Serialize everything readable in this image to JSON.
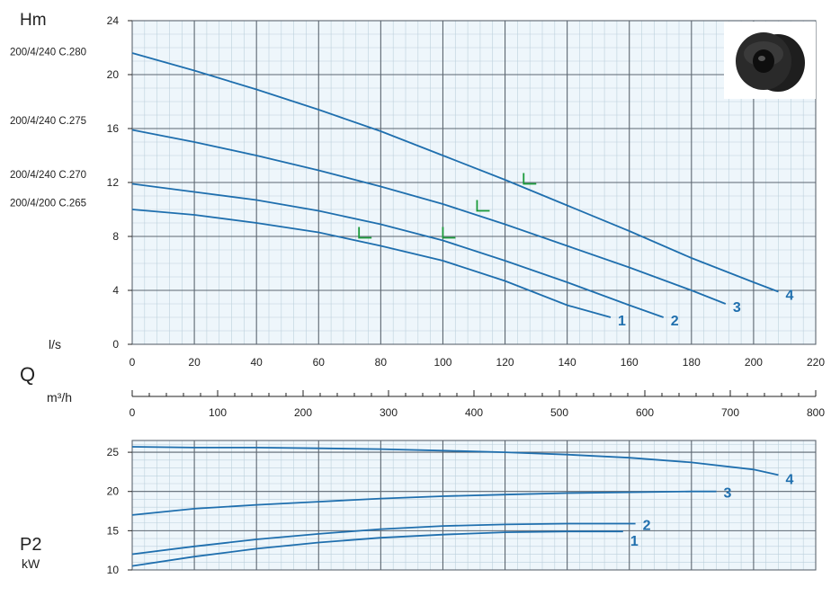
{
  "chart_data": [
    {
      "type": "line",
      "ylabel": "Hm",
      "xlabel": "l/s",
      "x_axis_title": "Q",
      "xlim": [
        0,
        220
      ],
      "ylim": [
        0,
        24
      ],
      "x_ticks": [
        0,
        20,
        40,
        60,
        80,
        100,
        120,
        140,
        160,
        180,
        200,
        220
      ],
      "y_ticks": [
        0,
        4,
        8,
        12,
        16,
        20,
        24
      ],
      "grid": true,
      "model_labels": [
        {
          "text": "200/4/240 C.280",
          "y": 21.7
        },
        {
          "text": "200/4/240 C.275",
          "y": 16.6
        },
        {
          "text": "200/4/240 C.270",
          "y": 12.6
        },
        {
          "text": "200/4/200 C.265",
          "y": 10.5
        }
      ],
      "series": [
        {
          "name": "1",
          "x": [
            0,
            20,
            40,
            60,
            80,
            100,
            120,
            140,
            154
          ],
          "y": [
            10.0,
            9.6,
            9.0,
            8.3,
            7.3,
            6.2,
            4.7,
            2.9,
            2.0
          ]
        },
        {
          "name": "2",
          "x": [
            0,
            20,
            40,
            60,
            80,
            100,
            120,
            140,
            160,
            171
          ],
          "y": [
            11.9,
            11.3,
            10.7,
            9.9,
            8.9,
            7.7,
            6.2,
            4.6,
            2.9,
            2.0
          ]
        },
        {
          "name": "3",
          "x": [
            0,
            20,
            40,
            60,
            80,
            100,
            120,
            140,
            160,
            180,
            191
          ],
          "y": [
            15.9,
            15.0,
            14.0,
            12.9,
            11.7,
            10.4,
            8.9,
            7.3,
            5.7,
            4.0,
            3.0
          ]
        },
        {
          "name": "4",
          "x": [
            0,
            20,
            40,
            60,
            80,
            100,
            120,
            140,
            160,
            180,
            200,
            208
          ],
          "y": [
            21.6,
            20.3,
            18.9,
            17.4,
            15.8,
            14.0,
            12.2,
            10.3,
            8.4,
            6.4,
            4.6,
            3.9
          ]
        }
      ],
      "markers": [
        {
          "series": "1",
          "x": 73,
          "y": 7.9
        },
        {
          "series": "2",
          "x": 100,
          "y": 7.9
        },
        {
          "series": "3",
          "x": 111,
          "y": 9.9
        },
        {
          "series": "4",
          "x": 126,
          "y": 11.9
        }
      ]
    },
    {
      "type": "axis",
      "xlabel": "m³/h",
      "xlim": [
        0,
        800
      ],
      "x_ticks": [
        0,
        100,
        200,
        300,
        400,
        500,
        600,
        700,
        800
      ]
    },
    {
      "type": "line",
      "ylabel": "P2",
      "yunit": "kW",
      "xlim": [
        0,
        220
      ],
      "ylim": [
        10,
        26.5
      ],
      "y_ticks": [
        10,
        15,
        20,
        25
      ],
      "grid": true,
      "series": [
        {
          "name": "1",
          "x": [
            0,
            20,
            40,
            60,
            80,
            100,
            120,
            140,
            158
          ],
          "y": [
            10.5,
            11.7,
            12.7,
            13.5,
            14.1,
            14.5,
            14.8,
            14.9,
            14.9
          ]
        },
        {
          "name": "2",
          "x": [
            0,
            20,
            40,
            60,
            80,
            100,
            120,
            140,
            160,
            162
          ],
          "y": [
            12.0,
            13.0,
            13.9,
            14.6,
            15.2,
            15.6,
            15.8,
            15.9,
            15.9,
            15.9
          ]
        },
        {
          "name": "3",
          "x": [
            0,
            20,
            40,
            60,
            80,
            100,
            120,
            140,
            160,
            180,
            188
          ],
          "y": [
            17.0,
            17.8,
            18.3,
            18.7,
            19.1,
            19.4,
            19.6,
            19.8,
            19.9,
            20.0,
            20.0
          ]
        },
        {
          "name": "4",
          "x": [
            0,
            20,
            40,
            60,
            80,
            100,
            120,
            140,
            160,
            180,
            200,
            208
          ],
          "y": [
            25.7,
            25.6,
            25.6,
            25.5,
            25.4,
            25.2,
            25.0,
            24.7,
            24.3,
            23.7,
            22.8,
            22.1
          ]
        }
      ]
    }
  ],
  "colors": {
    "curve": "#1f6fae",
    "label": "#1f6fae",
    "marker": "#1a9a3a",
    "plot_bg": "#eef6fb",
    "minor_grid": "#bcd0dc",
    "major_grid": "#5c6670",
    "axis_text": "#222222"
  },
  "photo": {
    "icon": "pump-impeller-image"
  }
}
